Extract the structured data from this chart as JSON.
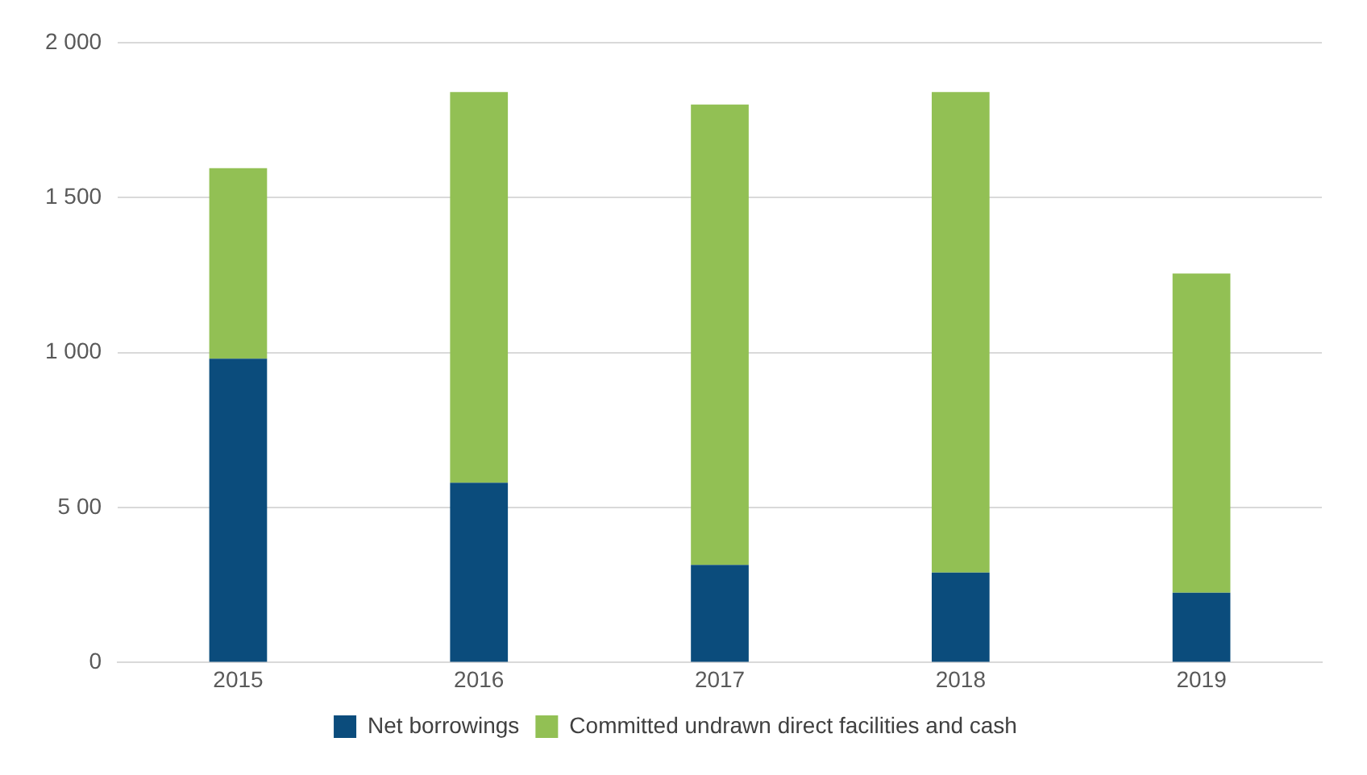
{
  "chart_data": {
    "type": "bar",
    "stacked": true,
    "categories": [
      "2015",
      "2016",
      "2017",
      "2018",
      "2019"
    ],
    "series": [
      {
        "name": "Net borrowings",
        "color": "#0b4c7c",
        "values": [
          980,
          580,
          315,
          290,
          225
        ]
      },
      {
        "name": "Committed undrawn direct facilities and cash",
        "color": "#92c054",
        "values": [
          615,
          1260,
          1485,
          1550,
          1030
        ]
      }
    ],
    "ylim": [
      0,
      2000
    ],
    "yticks": [
      0,
      {
        "value": 500,
        "label": "5 00"
      },
      {
        "value": 1000,
        "label": "1 000"
      },
      {
        "value": 1500,
        "label": "1 500"
      },
      {
        "value": 2000,
        "label": "2 000"
      }
    ],
    "grid": "y",
    "legend": "bottom"
  }
}
